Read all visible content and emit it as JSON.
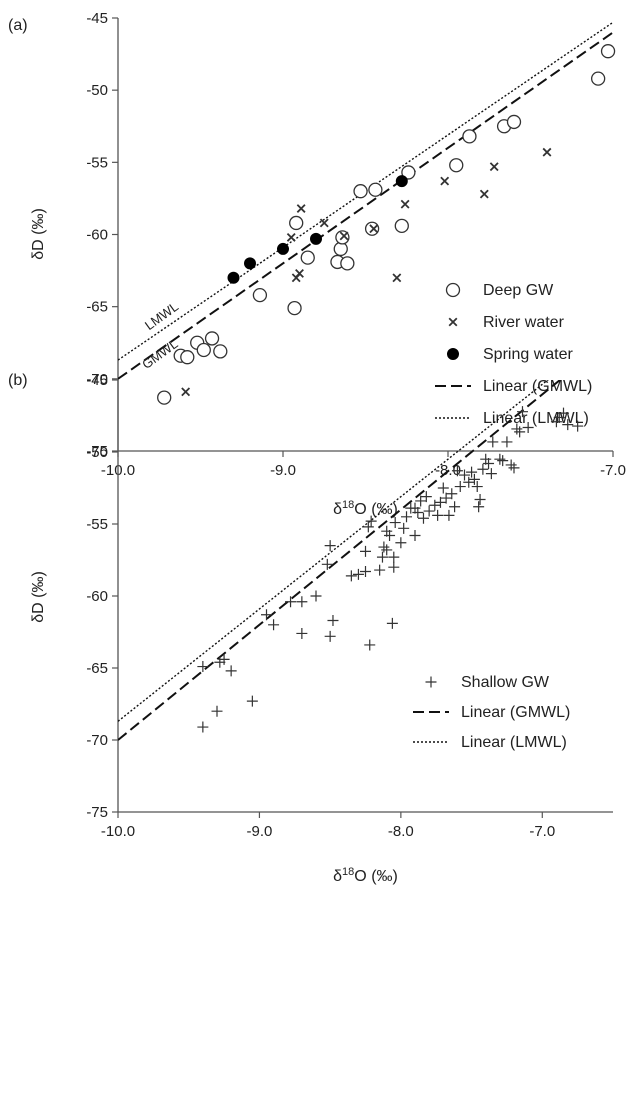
{
  "chart_data": [
    {
      "type": "scatter",
      "panel_label": "(a)",
      "xlabel": "δ18O (‰)",
      "xlabel_base": "δ",
      "xlabel_sup": "18",
      "xlabel_tail": "O (‰)",
      "ylabel": "δD (‰)",
      "xlim": [
        -10.0,
        -7.0
      ],
      "ylim": [
        -75,
        -45
      ],
      "x_ticks": [
        -10.0,
        -9.0,
        -8.0,
        -7.0
      ],
      "x_tick_labels": [
        "-10.0",
        "-9.0",
        "-8.0",
        "-7.0"
      ],
      "y_ticks": [
        -45,
        -50,
        -55,
        -60,
        -65,
        -70,
        -75
      ],
      "y_tick_labels": [
        "-45",
        "-50",
        "-55",
        "-60",
        "-65",
        "-70",
        "-75"
      ],
      "grid": false,
      "legend_position": "bottom-right",
      "series": [
        {
          "name": "Deep GW",
          "marker": "open-circle",
          "color": "#333333",
          "points": [
            [
              -9.72,
              -71.3
            ],
            [
              -9.62,
              -68.4
            ],
            [
              -9.58,
              -68.5
            ],
            [
              -9.52,
              -67.5
            ],
            [
              -9.48,
              -68.0
            ],
            [
              -9.43,
              -67.2
            ],
            [
              -9.38,
              -68.1
            ],
            [
              -9.14,
              -64.2
            ],
            [
              -8.93,
              -65.1
            ],
            [
              -8.92,
              -59.2
            ],
            [
              -8.85,
              -61.6
            ],
            [
              -8.67,
              -61.9
            ],
            [
              -8.65,
              -61.0
            ],
            [
              -8.64,
              -60.2
            ],
            [
              -8.61,
              -62.0
            ],
            [
              -8.53,
              -57.0
            ],
            [
              -8.46,
              -59.6
            ],
            [
              -8.44,
              -56.9
            ],
            [
              -8.28,
              -59.4
            ],
            [
              -8.24,
              -55.7
            ],
            [
              -7.95,
              -55.2
            ],
            [
              -7.87,
              -53.2
            ],
            [
              -7.66,
              -52.5
            ],
            [
              -7.6,
              -52.2
            ],
            [
              -7.09,
              -49.2
            ],
            [
              -7.03,
              -47.3
            ]
          ]
        },
        {
          "name": "River water",
          "marker": "x",
          "color": "#333333",
          "points": [
            [
              -9.59,
              -70.9
            ],
            [
              -8.95,
              -60.2
            ],
            [
              -8.92,
              -63.0
            ],
            [
              -8.9,
              -62.7
            ],
            [
              -8.89,
              -58.2
            ],
            [
              -8.75,
              -59.2
            ],
            [
              -8.63,
              -60.1
            ],
            [
              -8.45,
              -59.6
            ],
            [
              -8.31,
              -63.0
            ],
            [
              -8.26,
              -57.9
            ],
            [
              -8.02,
              -56.3
            ],
            [
              -7.78,
              -57.2
            ],
            [
              -7.72,
              -55.3
            ],
            [
              -7.4,
              -54.3
            ]
          ]
        },
        {
          "name": "Spring water",
          "marker": "filled-circle",
          "color": "#000000",
          "points": [
            [
              -9.3,
              -63.0
            ],
            [
              -9.2,
              -62.0
            ],
            [
              -9.0,
              -61.0
            ],
            [
              -8.8,
              -60.3
            ],
            [
              -8.28,
              -56.3
            ]
          ]
        },
        {
          "name": "Linear (GMWL)",
          "kind": "line",
          "style": "dashed",
          "slope": 8,
          "intercept": 10,
          "x_range": [
            -10.0,
            -7.0
          ],
          "inline_label": "GMWL"
        },
        {
          "name": "Linear (LMWL)",
          "kind": "line",
          "style": "dotted",
          "slope": 7.8,
          "intercept": 9.3,
          "x_range": [
            -10.0,
            -7.0
          ],
          "inline_label": "LMWL"
        }
      ]
    },
    {
      "type": "scatter",
      "panel_label": "(b)",
      "xlabel": "δ18O (‰)",
      "xlabel_base": "δ",
      "xlabel_sup": "18",
      "xlabel_tail": "O (‰)",
      "ylabel": "δD (‰)",
      "xlim": [
        -10.0,
        -6.5
      ],
      "ylim": [
        -75,
        -45
      ],
      "x_ticks": [
        -10.0,
        -9.0,
        -8.0,
        -7.0
      ],
      "x_tick_labels": [
        "-10.0",
        "-9.0",
        "-8.0",
        "-7.0"
      ],
      "y_ticks": [
        -45,
        -50,
        -55,
        -60,
        -65,
        -70,
        -75
      ],
      "y_tick_labels": [
        "-45",
        "-50",
        "-55",
        "-60",
        "-65",
        "-70",
        "-75"
      ],
      "grid": false,
      "legend_position": "bottom-right",
      "series": [
        {
          "name": "Shallow GW",
          "marker": "plus",
          "color": "#333333",
          "points": [
            [
              -9.4,
              -69.1
            ],
            [
              -9.4,
              -64.9
            ],
            [
              -9.3,
              -68.0
            ],
            [
              -9.28,
              -64.6
            ],
            [
              -9.25,
              -64.4
            ],
            [
              -9.2,
              -65.2
            ],
            [
              -9.05,
              -67.3
            ],
            [
              -8.95,
              -61.3
            ],
            [
              -8.9,
              -62.0
            ],
            [
              -8.78,
              -60.4
            ],
            [
              -8.7,
              -60.4
            ],
            [
              -8.7,
              -62.6
            ],
            [
              -8.6,
              -60.0
            ],
            [
              -8.52,
              -57.8
            ],
            [
              -8.5,
              -56.5
            ],
            [
              -8.5,
              -62.8
            ],
            [
              -8.48,
              -61.7
            ],
            [
              -8.35,
              -58.6
            ],
            [
              -8.3,
              -58.5
            ],
            [
              -8.25,
              -58.3
            ],
            [
              -8.25,
              -56.9
            ],
            [
              -8.23,
              -55.2
            ],
            [
              -8.22,
              -63.4
            ],
            [
              -8.21,
              -54.8
            ],
            [
              -8.15,
              -58.2
            ],
            [
              -8.13,
              -57.3
            ],
            [
              -8.12,
              -56.6
            ],
            [
              -8.1,
              -56.8
            ],
            [
              -8.1,
              -55.5
            ],
            [
              -8.08,
              -55.8
            ],
            [
              -8.06,
              -61.9
            ],
            [
              -8.05,
              -58.0
            ],
            [
              -8.05,
              -57.3
            ],
            [
              -8.04,
              -54.9
            ],
            [
              -8.0,
              -56.3
            ],
            [
              -7.98,
              -55.3
            ],
            [
              -7.96,
              -54.5
            ],
            [
              -7.93,
              -53.9
            ],
            [
              -7.9,
              -55.8
            ],
            [
              -7.9,
              -53.9
            ],
            [
              -7.88,
              -54.2
            ],
            [
              -7.86,
              -53.4
            ],
            [
              -7.84,
              -54.6
            ],
            [
              -7.82,
              -53.1
            ],
            [
              -7.8,
              -54.1
            ],
            [
              -7.76,
              -53.7
            ],
            [
              -7.74,
              -54.4
            ],
            [
              -7.72,
              -53.5
            ],
            [
              -7.7,
              -52.5
            ],
            [
              -7.68,
              -53.2
            ],
            [
              -7.66,
              -54.4
            ],
            [
              -7.64,
              -52.9
            ],
            [
              -7.62,
              -53.8
            ],
            [
              -7.6,
              -51.3
            ],
            [
              -7.58,
              -52.4
            ],
            [
              -7.55,
              -51.6
            ],
            [
              -7.52,
              -52.1
            ],
            [
              -7.5,
              -51.4
            ],
            [
              -7.48,
              -51.9
            ],
            [
              -7.46,
              -52.4
            ],
            [
              -7.45,
              -53.8
            ],
            [
              -7.44,
              -53.3
            ],
            [
              -7.42,
              -51.2
            ],
            [
              -7.4,
              -50.5
            ],
            [
              -7.38,
              -50.8
            ],
            [
              -7.36,
              -51.5
            ],
            [
              -7.35,
              -49.3
            ],
            [
              -7.3,
              -50.5
            ],
            [
              -7.28,
              -50.6
            ],
            [
              -7.25,
              -49.3
            ],
            [
              -7.22,
              -50.9
            ],
            [
              -7.2,
              -51.1
            ],
            [
              -7.18,
              -48.4
            ],
            [
              -7.16,
              -48.6
            ],
            [
              -7.14,
              -47.2
            ],
            [
              -7.1,
              -48.3
            ],
            [
              -6.9,
              -47.9
            ],
            [
              -6.88,
              -47.6
            ],
            [
              -6.85,
              -47.3
            ],
            [
              -6.82,
              -48.1
            ],
            [
              -6.75,
              -48.2
            ]
          ]
        },
        {
          "name": "Linear (GMWL)",
          "kind": "line",
          "style": "dashed",
          "slope": 8,
          "intercept": 10,
          "x_range": [
            -10.0,
            -6.5
          ]
        },
        {
          "name": "Linear (LMWL)",
          "kind": "line",
          "style": "dotted",
          "slope": 7.8,
          "intercept": 9.3,
          "x_range": [
            -10.0,
            -6.5
          ]
        }
      ]
    }
  ]
}
